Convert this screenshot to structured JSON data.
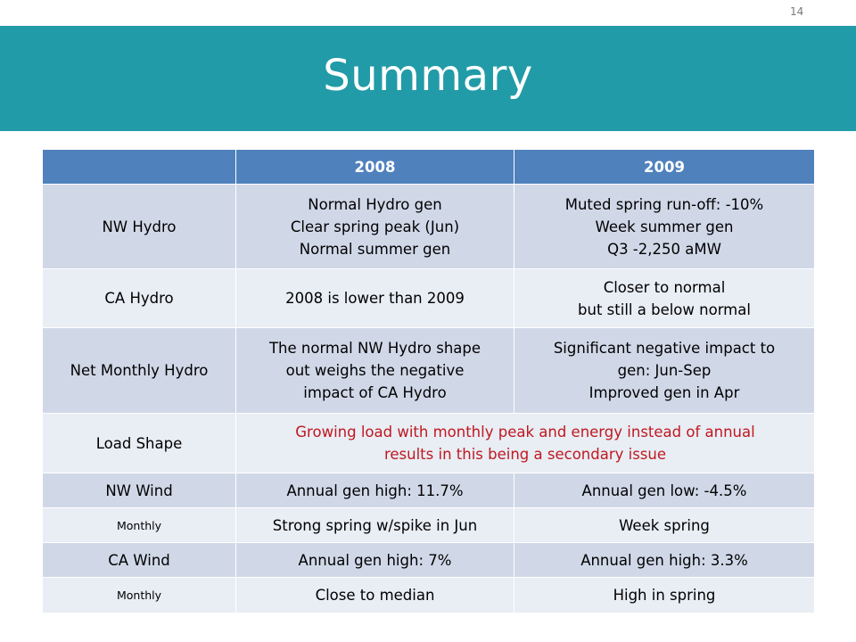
{
  "page_number": "14",
  "title": "Summary",
  "table": {
    "headers": [
      "",
      "2008",
      "2009"
    ],
    "rows": {
      "nw_hydro": {
        "label": "NW Hydro",
        "c2008": [
          "Normal Hydro gen",
          "Clear spring peak (Jun)",
          "Normal summer gen"
        ],
        "c2009": [
          "Muted spring run-off: -10%",
          "Week summer gen",
          "Q3 -2,250 aMW"
        ]
      },
      "ca_hydro": {
        "label": "CA Hydro",
        "c2008": [
          "2008 is lower than 2009"
        ],
        "c2009": [
          "Closer to normal",
          "but still a below normal"
        ]
      },
      "net_hydro": {
        "label": "Net Monthly Hydro",
        "c2008": [
          "The normal NW Hydro shape",
          "out weighs the negative",
          "impact of CA Hydro"
        ],
        "c2009": [
          "Significant negative impact to",
          "gen: Jun-Sep",
          "Improved gen in Apr"
        ]
      },
      "load_shape": {
        "label": "Load Shape",
        "text": [
          "Growing load with monthly peak and energy instead of annual",
          "results in this being a secondary issue"
        ]
      },
      "nw_wind": {
        "label": "NW Wind",
        "c2008": "Annual gen high: 11.7%",
        "c2009": "Annual gen low: -4.5%"
      },
      "nw_wind_monthly": {
        "label": "Monthly",
        "c2008": "Strong spring w/spike in Jun",
        "c2009": "Week spring"
      },
      "ca_wind": {
        "label": "CA Wind",
        "c2008": "Annual gen high: 7%",
        "c2009": "Annual gen high: 3.3%"
      },
      "ca_wind_monthly": {
        "label": "Monthly",
        "c2008": "Close to median",
        "c2009": "High in spring"
      }
    }
  },
  "colors": {
    "title_band": "#219ba7",
    "header": "#4f81bd",
    "row_dark": "#d0d8e8",
    "row_light": "#e9edf4",
    "emphasis_text": "#c0181f"
  }
}
